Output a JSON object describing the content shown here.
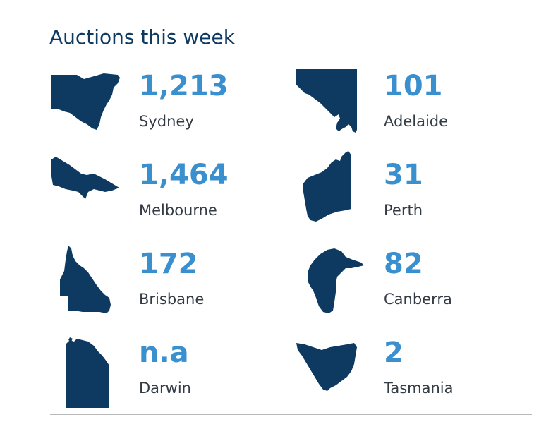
{
  "title": "Auctions this week",
  "colors": {
    "title": "#0e3a62",
    "value": "#3a8fcf",
    "shape": "#0e3a62",
    "divider": "#b9b9b9"
  },
  "cities": [
    {
      "name": "Sydney",
      "value": "1,213",
      "icon": "nsw-state-icon"
    },
    {
      "name": "Adelaide",
      "value": "101",
      "icon": "sa-state-icon"
    },
    {
      "name": "Melbourne",
      "value": "1,464",
      "icon": "vic-state-icon"
    },
    {
      "name": "Perth",
      "value": "31",
      "icon": "wa-state-icon"
    },
    {
      "name": "Brisbane",
      "value": "172",
      "icon": "qld-state-icon"
    },
    {
      "name": "Canberra",
      "value": "82",
      "icon": "act-territory-icon"
    },
    {
      "name": "Darwin",
      "value": "n.a",
      "icon": "nt-territory-icon"
    },
    {
      "name": "Tasmania",
      "value": "2",
      "icon": "tas-state-icon"
    }
  ]
}
